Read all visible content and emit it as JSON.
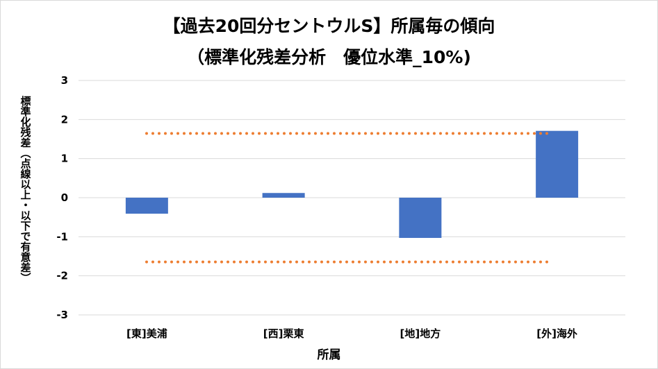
{
  "chart_data": {
    "type": "bar",
    "title": "【過去20回分セントウルS】所属毎の傾向",
    "subtitle": "（標準化残差分析　優位水準_10%)",
    "xlabel": "所属",
    "ylabel_main": "標準化残差",
    "ylabel_note": "（点線以上・以下で有意差）",
    "categories": [
      "[東]美浦",
      "[西]栗東",
      "[地]地方",
      "[外]海外"
    ],
    "values": [
      -0.41,
      0.12,
      -1.03,
      1.71
    ],
    "ylim": [
      -3,
      3
    ],
    "yticks": [
      3,
      2,
      1,
      0,
      -1,
      -2,
      -3
    ],
    "threshold_upper": 1.645,
    "threshold_lower": -1.645,
    "grid": true,
    "colors": {
      "bar": "#4472c4",
      "threshold": "#ed7d31",
      "grid": "#d9d9d9"
    }
  }
}
